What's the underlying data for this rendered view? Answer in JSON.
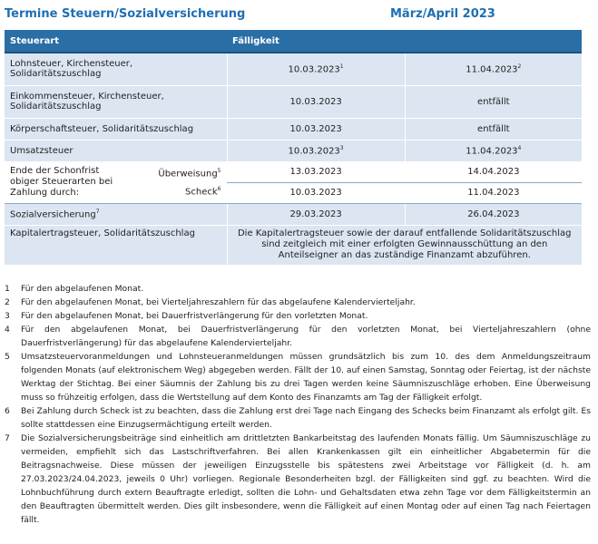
{
  "header": {
    "title": "Termine Steuern/Sozialversicherung",
    "period": "März/April 2023"
  },
  "table": {
    "headers": [
      "Steuerart",
      "Fälligkeit"
    ],
    "rows": [
      {
        "label": "Lohnsteuer, Kirchensteuer, Solidaritätszuschlag",
        "date_march": "10.03.2023",
        "note_march": "1",
        "date_april": "11.04.2023",
        "note_april": "2"
      },
      {
        "label": "Einkommensteuer, Kirchensteuer, Solidaritätszuschlag",
        "date_march": "10.03.2023",
        "date_april": "entfällt"
      },
      {
        "label": "Körperschaftsteuer, Solidaritätszuschlag",
        "date_march": "10.03.2023",
        "date_april": "entfällt"
      },
      {
        "label": "Umsatzsteuer",
        "date_march": "10.03.2023",
        "note_march": "3",
        "date_april": "11.04.2023",
        "note_april": "4"
      }
    ],
    "grace_period": {
      "label": "Ende der Schonfrist obiger Steuerarten bei Zahlung durch:",
      "methods": [
        {
          "name": "Überweisung",
          "note": "5",
          "date_march": "13.03.2023",
          "date_april": "14.04.2023"
        },
        {
          "name": "Scheck",
          "note": "6",
          "date_march": "10.03.2023",
          "date_april": "11.04.2023"
        }
      ]
    },
    "social": {
      "label": "Sozialversicherung",
      "note": "7",
      "date_march": "29.03.2023",
      "date_april": "26.04.2023"
    },
    "capital": {
      "label": "Kapitalertragsteuer, Solidaritätszuschlag",
      "text": "Die Kapitalertragsteuer sowie der darauf entfallende Solidaritätszuschlag sind zeitgleich mit einer erfolgten Gewinnausschüttung an den Anteilseigner an das zuständige Finanzamt abzuführen."
    }
  },
  "footnotes": [
    {
      "number": "1",
      "text": "Für den abgelaufenen Monat."
    },
    {
      "number": "2",
      "text": "Für den abgelaufenen Monat, bei Vierteljahreszahlern für das abgelaufene Kalendervierteljahr."
    },
    {
      "number": "3",
      "text": "Für den abgelaufenen Monat, bei Dauerfristverlängerung für den vorletzten Monat."
    },
    {
      "number": "4",
      "text": "Für den abgelaufenen Monat, bei Dauerfristverlängerung für den vorletzten Monat, bei Vierteljahreszahlern (ohne Dauerfristverlängerung) für das abgelaufene Kalendervierteljahr."
    },
    {
      "number": "5",
      "text": "Umsatzsteuervoranmeldungen und Lohnsteueranmeldungen müssen grundsätzlich bis zum 10. des dem Anmeldungszeitraum folgenden Monats (auf elektronischem Weg) abgegeben werden. Fällt der 10. auf einen Samstag, Sonntag oder Feiertag, ist der nächste Werktag der Stichtag. Bei einer Säumnis der Zahlung bis zu drei Tagen werden keine Säumniszuschläge erhoben. Eine Überweisung muss so frühzeitig erfolgen, dass die Wertstellung auf dem Konto des Finanzamts am Tag der Fälligkeit erfolgt."
    },
    {
      "number": "6",
      "text": "Bei Zahlung durch Scheck ist zu beachten, dass die Zahlung erst drei Tage nach Eingang des Schecks beim Finanzamt als erfolgt gilt. Es sollte stattdessen eine Einzugsermächtigung erteilt werden."
    },
    {
      "number": "7",
      "text": "Die Sozialversicherungsbeiträge sind einheitlich am drittletzten Bankarbeitstag des laufenden Monats fällig. Um Säumniszuschläge zu vermeiden, empfiehlt sich das Lastschriftverfahren. Bei allen Krankenkassen gilt ein einheitlicher Abgabetermin für die Beitragsnachweise. Diese müssen der jeweiligen Einzugsstelle bis spätestens zwei Arbeitstage vor Fälligkeit (d. h. am 27.03.2023/24.04.2023, jeweils 0 Uhr) vorliegen. Regionale Besonderheiten bzgl. der Fälligkeiten sind ggf. zu beachten. Wird die Lohnbuchführung durch extern Beauftragte erledigt, sollten die Lohn- und Gehaltsdaten etwa zehn Tage vor dem Fälligkeitstermin an den Beauftragten übermittelt werden. Dies gilt insbesondere, wenn die Fälligkeit auf einen Montag oder auf einen Tag nach Feiertagen fällt."
    }
  ]
}
